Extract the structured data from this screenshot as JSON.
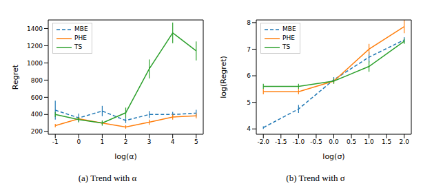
{
  "chart_data": [
    {
      "type": "line",
      "caption": "(a) Trend with α",
      "x_label": "log(α)",
      "y_label": "Regret",
      "x": [
        -1,
        0,
        1,
        2,
        3,
        4,
        5
      ],
      "xlim": [
        -1.3,
        5.3
      ],
      "xticks": [
        -1,
        0,
        1,
        2,
        3,
        4,
        5
      ],
      "ylim": [
        170,
        1500
      ],
      "yticks": [
        200,
        400,
        600,
        800,
        1000,
        1200,
        1400
      ],
      "grid": false,
      "legend": "upper left",
      "series": [
        {
          "name": "MBE",
          "color": "#1f77b4",
          "line_style": "dashed",
          "values": [
            450,
            360,
            440,
            330,
            400,
            400,
            415
          ],
          "errors": [
            110,
            50,
            60,
            30,
            40,
            30,
            40
          ]
        },
        {
          "name": "PHE",
          "color": "#ff7f0e",
          "line_style": "solid",
          "values": [
            270,
            350,
            300,
            255,
            310,
            370,
            385
          ],
          "errors": [
            20,
            20,
            20,
            20,
            30,
            30,
            30
          ]
        },
        {
          "name": "TS",
          "color": "#2ca02c",
          "line_style": "solid",
          "values": [
            400,
            340,
            300,
            420,
            930,
            1350,
            1140
          ],
          "errors": [
            30,
            30,
            30,
            60,
            110,
            120,
            110
          ]
        }
      ]
    },
    {
      "type": "line",
      "caption": "(b) Trend with σ",
      "x_label": "log(σ)",
      "y_label": "log(Regret)",
      "x": [
        -2,
        -1,
        0,
        1,
        2
      ],
      "xlim": [
        -2.2,
        2.2
      ],
      "xticks": [
        {
          "value": -2,
          "label": "-2.0"
        },
        {
          "value": -1.5,
          "label": "-1.5"
        },
        {
          "value": -1,
          "label": "-1.0"
        },
        {
          "value": -0.5,
          "label": "-0.5"
        },
        {
          "value": 0,
          "label": "0.0"
        },
        {
          "value": 0.5,
          "label": "0.5"
        },
        {
          "value": 1,
          "label": "1.0"
        },
        {
          "value": 1.5,
          "label": "1.5"
        },
        {
          "value": 2,
          "label": "2.0"
        }
      ],
      "ylim": [
        3.8,
        8.1
      ],
      "yticks": [
        4,
        5,
        6,
        7,
        8
      ],
      "grid": false,
      "legend": "upper left",
      "series": [
        {
          "name": "MBE",
          "color": "#1f77b4",
          "line_style": "dashed",
          "values": [
            4.05,
            4.75,
            5.85,
            6.7,
            7.35
          ],
          "errors": [
            0.05,
            0.15,
            0.1,
            0.2,
            0.1
          ]
        },
        {
          "name": "PHE",
          "color": "#ff7f0e",
          "line_style": "solid",
          "values": [
            5.4,
            5.4,
            5.8,
            7.0,
            7.85
          ],
          "errors": [
            0.1,
            0.1,
            0.1,
            0.2,
            0.25
          ]
        },
        {
          "name": "TS",
          "color": "#2ca02c",
          "line_style": "solid",
          "values": [
            5.6,
            5.6,
            5.8,
            6.35,
            7.3
          ],
          "errors": [
            0.1,
            0.1,
            0.1,
            0.2,
            0.1
          ]
        }
      ]
    }
  ]
}
